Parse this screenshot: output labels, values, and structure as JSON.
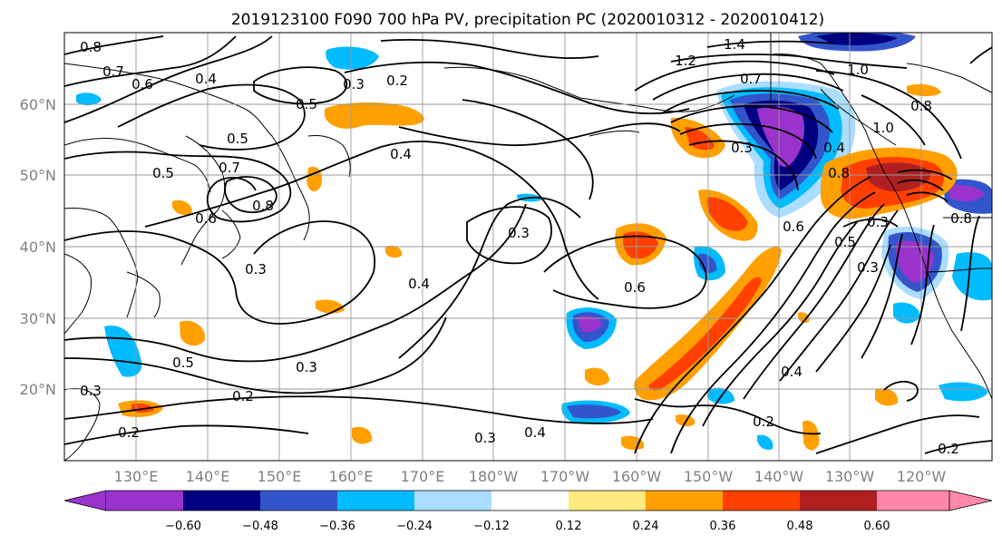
{
  "title": "2019123100 F090 700 hPa PV, precipitation PC (2020010312 - 2020010412)",
  "map": {
    "lon_ticks": [
      "130°E",
      "140°E",
      "150°E",
      "160°E",
      "170°E",
      "180°W",
      "170°W",
      "160°W",
      "150°W",
      "140°W",
      "130°W",
      "120°W"
    ],
    "lat_ticks": [
      "60°N",
      "50°N",
      "40°N",
      "30°N",
      "20°N"
    ],
    "contour_labels": [
      "0.8",
      "0.7",
      "0.6",
      "0.4",
      "0.5",
      "0.3",
      "0.2",
      "0.5",
      "0.5",
      "0.7",
      "0.8",
      "0.6",
      "0.4",
      "0.3",
      "0.3",
      "0.4",
      "0.5",
      "0.3",
      "0.2",
      "0.3",
      "0.2",
      "0.3",
      "0.4",
      "0.6",
      "0.3",
      "1.2",
      "1.4",
      "0.7",
      "1.0",
      "0.8",
      "1.0",
      "0.4",
      "0.3",
      "0.6",
      "0.8",
      "0.5",
      "0.3",
      "0.8",
      "0.4",
      "0.2",
      "0.2"
    ]
  },
  "colorbar": {
    "ticks": [
      "−0.60",
      "−0.48",
      "−0.36",
      "−0.24",
      "−0.12",
      "0.12",
      "0.24",
      "0.36",
      "0.48",
      "0.60"
    ],
    "colors": [
      "#9933cc",
      "#000080",
      "#3355cc",
      "#00bbff",
      "#aaddff",
      "#ffffff",
      "#ffea80",
      "#ffa000",
      "#ff4000",
      "#b02020",
      "#ff88aa"
    ]
  }
}
